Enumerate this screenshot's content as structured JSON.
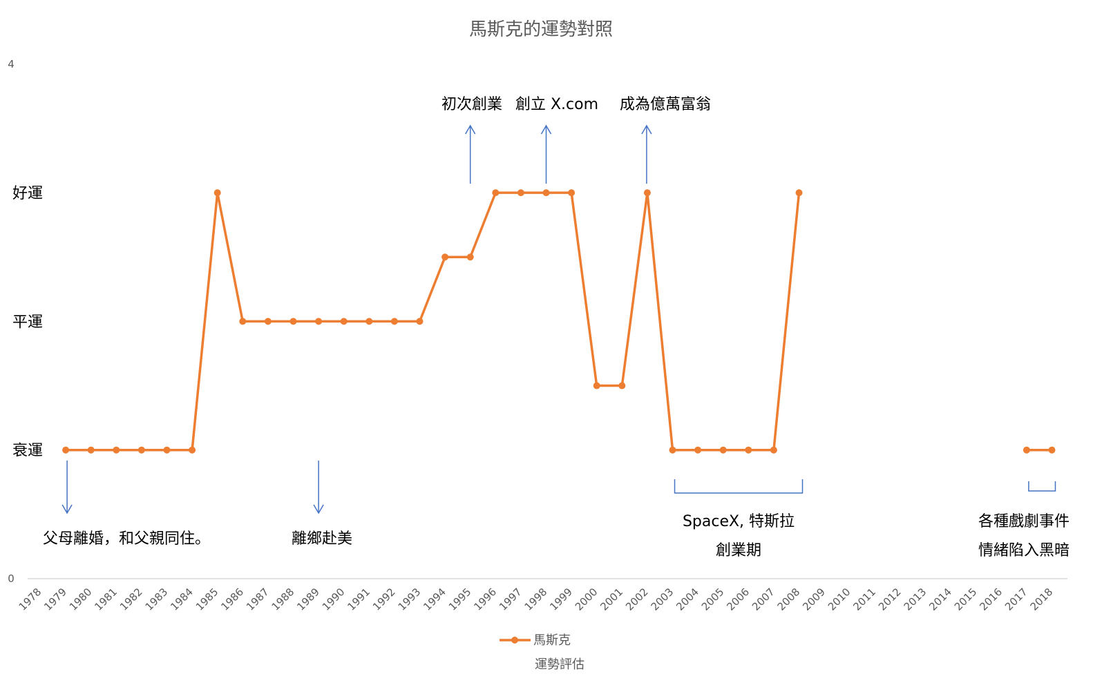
{
  "chart_data": {
    "type": "line",
    "title": "馬斯克的運勢對照",
    "xlabel": "運勢評估",
    "ylabel": "",
    "ylim": [
      0,
      4
    ],
    "y_ticks": [
      "0",
      "4"
    ],
    "level_labels": [
      {
        "value": 1,
        "label": "衰運"
      },
      {
        "value": 2,
        "label": "平運"
      },
      {
        "value": 3,
        "label": "好運"
      }
    ],
    "x": [
      "1978",
      "1979",
      "1980",
      "1981",
      "1982",
      "1983",
      "1984",
      "1985",
      "1986",
      "1987",
      "1988",
      "1989",
      "1990",
      "1991",
      "1992",
      "1993",
      "1994",
      "1995",
      "1996",
      "1997",
      "1998",
      "1999",
      "2000",
      "2001",
      "2002",
      "2003",
      "2004",
      "2005",
      "2006",
      "2007",
      "2008",
      "2009",
      "2010",
      "2011",
      "2012",
      "2013",
      "2014",
      "2015",
      "2016",
      "2017",
      "2018"
    ],
    "series": [
      {
        "name": "馬斯克",
        "color": "#ED7D31",
        "values": [
          null,
          1,
          1,
          1,
          1,
          1,
          1,
          3,
          2,
          2,
          2,
          2,
          2,
          2,
          2,
          2,
          2.5,
          2.5,
          3,
          3,
          3,
          3,
          1.5,
          1.5,
          3,
          1,
          1,
          1,
          1,
          1,
          3,
          null,
          null,
          null,
          null,
          null,
          null,
          null,
          null,
          1,
          1
        ]
      }
    ],
    "legend": "bottom",
    "grid": false,
    "annotation_color": "#4472C4",
    "annotations": [
      {
        "type": "arrow-down",
        "x": "1979",
        "lines": [
          "父母離婚，和父親同住。"
        ]
      },
      {
        "type": "arrow-down",
        "x": "1989",
        "lines": [
          "離鄉赴美"
        ]
      },
      {
        "type": "arrow-up",
        "x": "1995",
        "lines": [
          "初次創業"
        ]
      },
      {
        "type": "arrow-up",
        "x": "1998",
        "lines": [
          "創立 X.com"
        ]
      },
      {
        "type": "arrow-up",
        "x": "2002",
        "lines": [
          "成為億萬富翁"
        ]
      },
      {
        "type": "bracket",
        "x_start": "2003",
        "x_end": "2008",
        "lines": [
          "SpaceX, 特斯拉",
          "創業期"
        ]
      },
      {
        "type": "bracket",
        "x_start": "2017",
        "x_end": "2018",
        "lines": [
          "各種戲劇事件",
          "情緒陷入黑暗"
        ]
      }
    ]
  }
}
